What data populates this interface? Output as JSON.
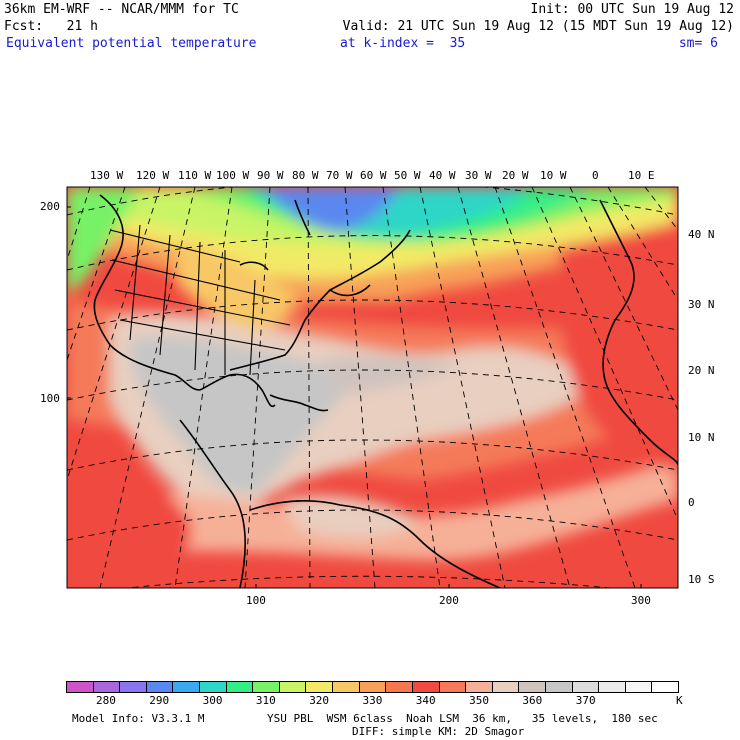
{
  "header": {
    "model_title": "36km EM-WRF -- NCAR/MMM for TC",
    "init": "Init: 00 UTC Sun 19 Aug 12",
    "forecast": "Fcst:   21 h",
    "valid": "Valid: 21 UTC Sun 19 Aug 12 (15 MDT Sun 19 Aug 12)",
    "field": "Equivalent potential temperature",
    "level": "at k-index =  35",
    "smoothing": "sm= 6"
  },
  "map": {
    "lon_labels": [
      "130 W",
      "120 W",
      "110 W",
      "100 W",
      "90 W",
      "80 W",
      "70 W",
      "60 W",
      "50 W",
      "40 W",
      "30 W",
      "20 W",
      "10 W",
      "0",
      "10 E"
    ],
    "lat_labels": [
      "40 N",
      "30 N",
      "20 N",
      "10 N",
      "0",
      "10 S"
    ],
    "y_grid_labels": [
      "200",
      "100"
    ],
    "x_grid_labels": [
      "100",
      "200",
      "300"
    ]
  },
  "colorbar": {
    "colors": [
      "#cc55cc",
      "#aa66dd",
      "#8877ee",
      "#5a88f0",
      "#3aaaf0",
      "#2ed6c8",
      "#33ee88",
      "#77f266",
      "#c8f466",
      "#f2ea66",
      "#f8c866",
      "#f8a058",
      "#f8784e",
      "#f04a40",
      "#f47a5a",
      "#f6b098",
      "#e8cfc0",
      "#cfc3bd",
      "#c6c6c6",
      "#dcdcdc",
      "#ececec",
      "#f6f6f6",
      "#ffffff"
    ],
    "labels": [
      "280",
      "290",
      "300",
      "310",
      "320",
      "330",
      "340",
      "350",
      "360",
      "370"
    ],
    "unit": "K"
  },
  "footer": {
    "model_info": "Model Info: V3.3.1 M",
    "physics": "YSU PBL  WSM 6class  Noah LSM  36 km,   35 levels,  180 sec",
    "diffusion": "DIFF: simple KM: 2D Smagor"
  }
}
